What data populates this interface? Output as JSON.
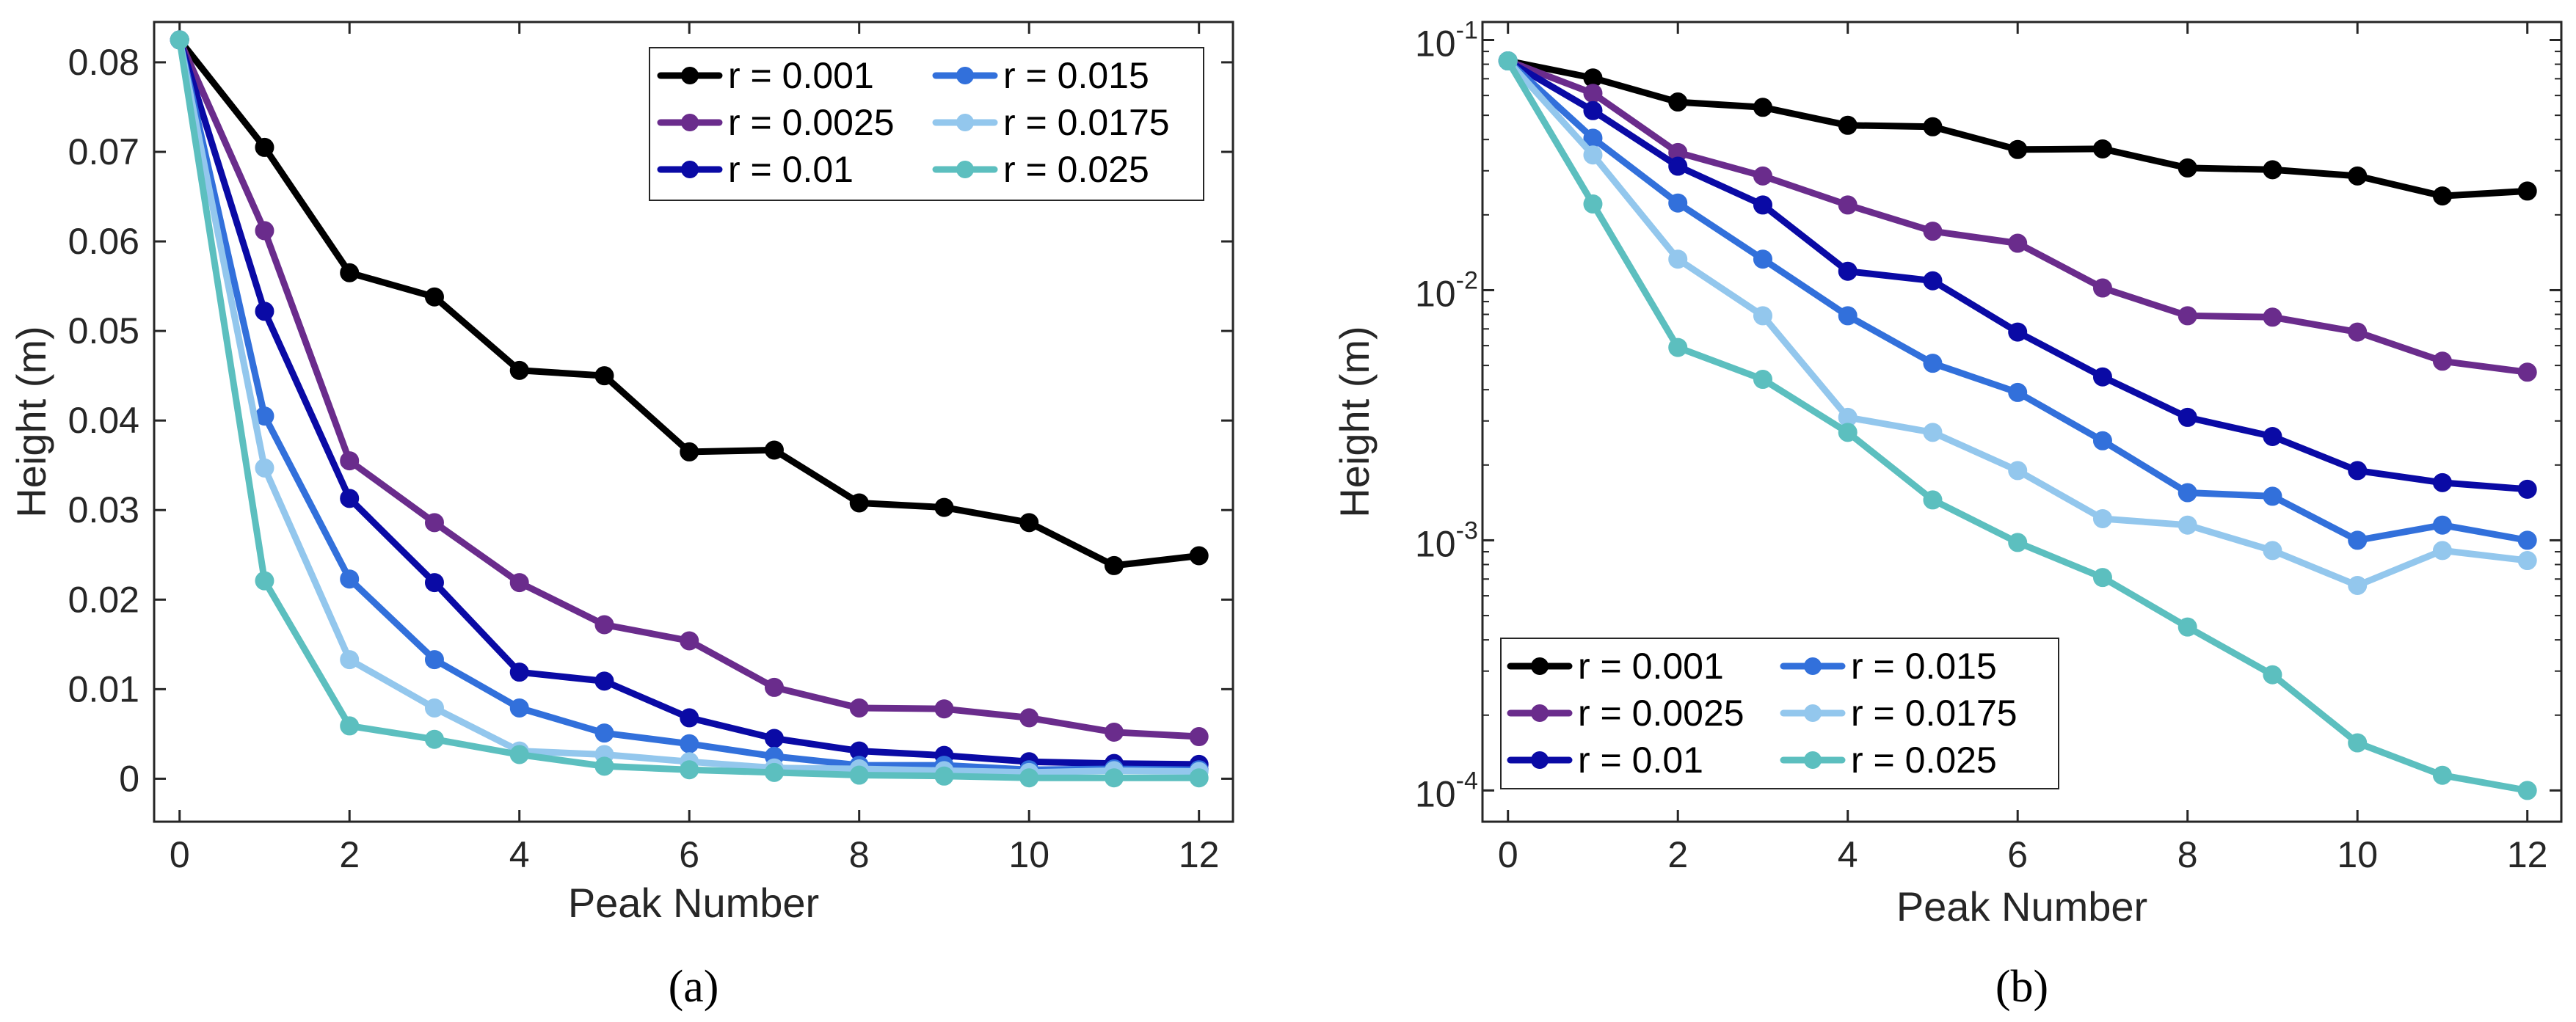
{
  "chart_data": [
    {
      "type": "line",
      "panel": "a",
      "caption": "(a)",
      "xlabel": "Peak Number",
      "ylabel": "Height (m)",
      "yscale": "linear",
      "xlim": [
        -0.3,
        12.4
      ],
      "ylim": [
        -0.0048,
        0.0845
      ],
      "x": [
        0,
        1,
        2,
        3,
        4,
        5,
        6,
        7,
        8,
        9,
        10,
        11,
        12
      ],
      "xticks": [
        0,
        2,
        4,
        6,
        8,
        10,
        12
      ],
      "xtick_labels": [
        "0",
        "2",
        "4",
        "6",
        "8",
        "10",
        "12"
      ],
      "yticks": [
        0,
        0.01,
        0.02,
        0.03,
        0.04,
        0.05,
        0.06,
        0.07,
        0.08
      ],
      "ytick_labels": [
        "0",
        "0.01",
        "0.02",
        "0.03",
        "0.04",
        "0.05",
        "0.06",
        "0.07",
        "0.08"
      ],
      "legend_position": "top-right",
      "series": [
        {
          "name": "r = 0.001",
          "color": "#000000",
          "values": [
            0.0825,
            0.0705,
            0.0565,
            0.0538,
            0.0456,
            0.045,
            0.0365,
            0.0367,
            0.0308,
            0.0303,
            0.0286,
            0.0238,
            0.0249
          ]
        },
        {
          "name": "r = 0.0025",
          "color": "#6a2c8c",
          "values": [
            0.0825,
            0.0612,
            0.0355,
            0.0286,
            0.0219,
            0.0172,
            0.0154,
            0.0102,
            0.0079,
            0.0078,
            0.0068,
            0.0052,
            0.0047
          ]
        },
        {
          "name": "r = 0.01",
          "color": "#0a0aa5",
          "values": [
            0.0825,
            0.0522,
            0.0313,
            0.0219,
            0.0119,
            0.0109,
            0.0068,
            0.0045,
            0.0031,
            0.0026,
            0.0019,
            0.0017,
            0.0016
          ]
        },
        {
          "name": "r = 0.015",
          "color": "#3270db",
          "values": [
            0.0825,
            0.0405,
            0.0223,
            0.0133,
            0.0079,
            0.0051,
            0.0039,
            0.0025,
            0.0015,
            0.0015,
            0.001,
            0.0011,
            0.001
          ]
        },
        {
          "name": "r = 0.0175",
          "color": "#93c7ed",
          "values": [
            0.0825,
            0.0347,
            0.0133,
            0.0079,
            0.0031,
            0.0027,
            0.0019,
            0.0012,
            0.0011,
            0.0009,
            0.0007,
            0.0009,
            0.0008
          ]
        },
        {
          "name": "r = 0.025",
          "color": "#5cbfbf",
          "values": [
            0.0825,
            0.0221,
            0.0059,
            0.0044,
            0.0027,
            0.0014,
            0.001,
            0.0007,
            0.0004,
            0.0003,
            0.0001,
            0.0001,
            0.0001
          ]
        }
      ]
    },
    {
      "type": "line",
      "panel": "b",
      "caption": "(b)",
      "xlabel": "Peak Number",
      "ylabel": "Height (m)",
      "yscale": "log",
      "xlim": [
        -0.3,
        12.4
      ],
      "ylim": [
        7.5e-05,
        0.118
      ],
      "x": [
        0,
        1,
        2,
        3,
        4,
        5,
        6,
        7,
        8,
        9,
        10,
        11,
        12
      ],
      "xticks": [
        0,
        2,
        4,
        6,
        8,
        10,
        12
      ],
      "xtick_labels": [
        "0",
        "2",
        "4",
        "6",
        "8",
        "10",
        "12"
      ],
      "yticks": [
        0.0001,
        0.001,
        0.01,
        0.1
      ],
      "ytick_labels": [
        {
          "base": "10",
          "exp": "-4"
        },
        {
          "base": "10",
          "exp": "-3"
        },
        {
          "base": "10",
          "exp": "-2"
        },
        {
          "base": "10",
          "exp": "-1"
        }
      ],
      "legend_position": "bottom-left",
      "series": [
        {
          "name": "r = 0.001",
          "color": "#000000",
          "values": [
            0.0825,
            0.0705,
            0.0565,
            0.0538,
            0.0456,
            0.045,
            0.0365,
            0.0367,
            0.0308,
            0.0303,
            0.0286,
            0.0238,
            0.0249
          ]
        },
        {
          "name": "r = 0.0025",
          "color": "#6a2c8c",
          "values": [
            0.0825,
            0.0612,
            0.0355,
            0.0286,
            0.0219,
            0.0172,
            0.0154,
            0.0102,
            0.0079,
            0.0078,
            0.0068,
            0.0052,
            0.0047
          ]
        },
        {
          "name": "r = 0.01",
          "color": "#0a0aa5",
          "values": [
            0.0825,
            0.0522,
            0.0313,
            0.0219,
            0.0119,
            0.0109,
            0.0068,
            0.0045,
            0.0031,
            0.0026,
            0.0019,
            0.0017,
            0.0016
          ]
        },
        {
          "name": "r = 0.015",
          "color": "#3270db",
          "values": [
            0.0825,
            0.0405,
            0.0223,
            0.0133,
            0.0079,
            0.0051,
            0.0039,
            0.0025,
            0.00155,
            0.0015,
            0.001,
            0.00115,
            0.001
          ]
        },
        {
          "name": "r = 0.0175",
          "color": "#93c7ed",
          "values": [
            0.0825,
            0.0347,
            0.0133,
            0.0079,
            0.0031,
            0.0027,
            0.0019,
            0.00122,
            0.00115,
            0.00091,
            0.00066,
            0.00091,
            0.00083
          ]
        },
        {
          "name": "r = 0.025",
          "color": "#5cbfbf",
          "values": [
            0.0825,
            0.0221,
            0.0059,
            0.0044,
            0.0027,
            0.00145,
            0.00098,
            0.00071,
            0.00045,
            0.00029,
            0.000155,
            0.000115,
            0.0001
          ]
        }
      ]
    }
  ]
}
